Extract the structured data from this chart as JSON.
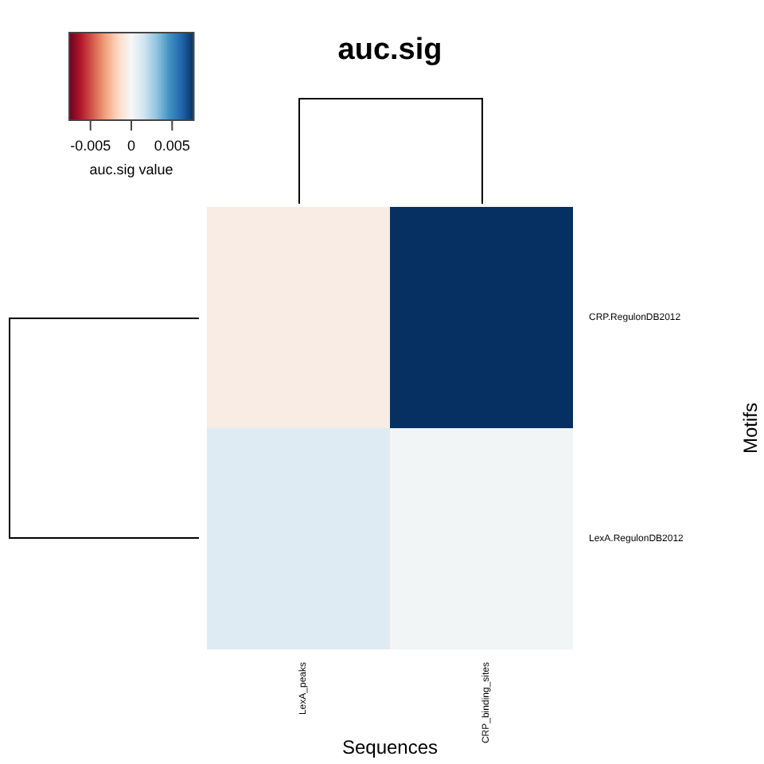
{
  "chart_data": {
    "type": "heatmap",
    "title": "auc.sig",
    "xlabel": "Sequences",
    "ylabel": "Motifs",
    "clabel": "auc.sig value",
    "categories": [
      "LexA_peaks",
      "CRP_binding_sites"
    ],
    "y_categories": [
      "CRP.RegulonDB2012",
      "LexA.RegulonDB2012"
    ],
    "cells": [
      [
        -0.0006,
        0.0077
      ],
      [
        0.001,
        0.0002
      ]
    ],
    "clim": [
      -0.0077,
      0.0077
    ],
    "cticks": [
      -0.005,
      0,
      0.005
    ]
  }
}
